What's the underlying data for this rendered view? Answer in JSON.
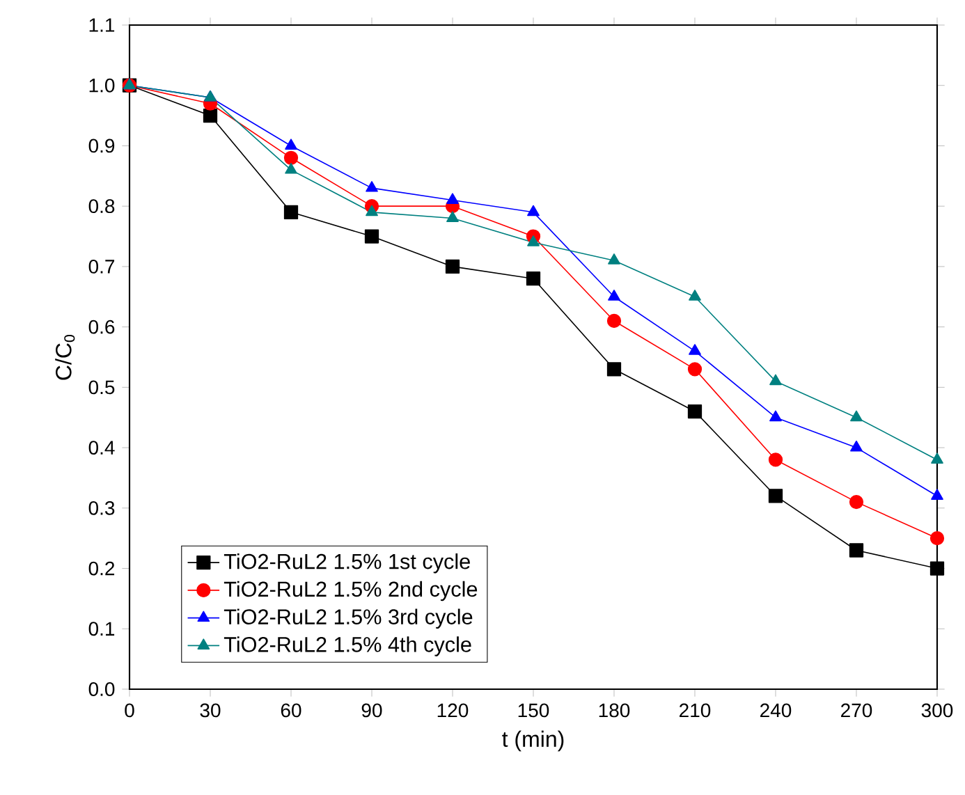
{
  "chart_data": {
    "type": "line",
    "xlabel": "t (min)",
    "ylabel": "C/C$_{0}$",
    "x": [
      0,
      30,
      60,
      90,
      120,
      150,
      180,
      210,
      240,
      270,
      300
    ],
    "series": [
      {
        "name": "TiO2-RuL2 1.5% 1st cycle",
        "color": "#000000",
        "marker": "square",
        "values": [
          1.0,
          0.95,
          0.79,
          0.75,
          0.7,
          0.68,
          0.53,
          0.46,
          0.32,
          0.23,
          0.2
        ]
      },
      {
        "name": "TiO2-RuL2 1.5% 2nd cycle",
        "color": "#ff0000",
        "marker": "circle",
        "values": [
          1.0,
          0.97,
          0.88,
          0.8,
          0.8,
          0.75,
          0.61,
          0.53,
          0.38,
          0.31,
          0.25
        ]
      },
      {
        "name": "TiO2-RuL2 1.5% 3rd cycle",
        "color": "#0000ff",
        "marker": "triangle",
        "values": [
          1.0,
          0.98,
          0.9,
          0.83,
          0.81,
          0.79,
          0.65,
          0.56,
          0.45,
          0.4,
          0.32
        ]
      },
      {
        "name": "TiO2-RuL2 1.5% 4th cycle",
        "color": "#008080",
        "marker": "triangle",
        "values": [
          1.0,
          0.98,
          0.86,
          0.79,
          0.78,
          0.74,
          0.71,
          0.65,
          0.51,
          0.45,
          0.38
        ]
      }
    ],
    "xlim": [
      0,
      300
    ],
    "xticks": [
      0,
      30,
      60,
      90,
      120,
      150,
      180,
      210,
      240,
      270,
      300
    ],
    "ylim": [
      0,
      1.1
    ],
    "yticks": [
      {
        "value": 0,
        "label": "0.0"
      },
      0.1,
      0.2,
      0.3,
      0.4,
      0.5,
      0.6,
      0.7,
      0.8,
      0.9,
      {
        "value": 1,
        "label": "1.0"
      },
      1.1
    ],
    "legend": "bottom left",
    "grid": false,
    "line_style": "solid"
  }
}
